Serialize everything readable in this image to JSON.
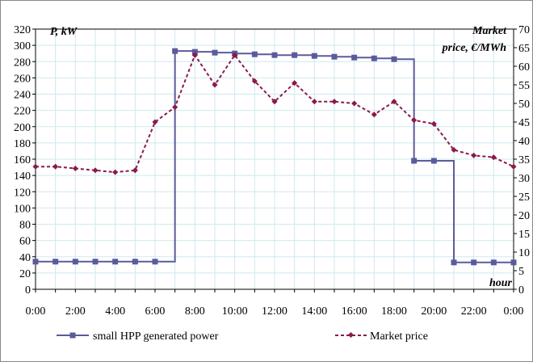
{
  "chart_data": {
    "type": "line",
    "x": [
      "0:00",
      "1:00",
      "2:00",
      "3:00",
      "4:00",
      "5:00",
      "6:00",
      "7:00",
      "8:00",
      "9:00",
      "10:00",
      "11:00",
      "12:00",
      "13:00",
      "14:00",
      "15:00",
      "16:00",
      "17:00",
      "18:00",
      "19:00",
      "20:00",
      "21:00",
      "22:00",
      "23:00",
      "0:00"
    ],
    "x_tick_labels": [
      "0:00",
      "2:00",
      "4:00",
      "6:00",
      "8:00",
      "10:00",
      "12:00",
      "14:00",
      "16:00",
      "18:00",
      "20:00",
      "22:00",
      "0:00"
    ],
    "series": [
      {
        "name": "small HPP generated power",
        "axis": "left",
        "color": "#5b5b9b",
        "style": "solid-step-square",
        "values": [
          34,
          34,
          34,
          34,
          34,
          34,
          34,
          293,
          292,
          291,
          290,
          289,
          288,
          288,
          287,
          286,
          285,
          284,
          283,
          158,
          158,
          33,
          33,
          33,
          33
        ]
      },
      {
        "name": "Market price",
        "axis": "right",
        "color": "#8a1a4a",
        "style": "dashed-diamond",
        "values": [
          33,
          33,
          32.5,
          32,
          31.5,
          32,
          45,
          49,
          63,
          55,
          63,
          56,
          50.5,
          55.5,
          50.5,
          50.5,
          50,
          47,
          50.5,
          45.5,
          44.5,
          37.5,
          36,
          35.5,
          33
        ]
      }
    ],
    "y_left": {
      "label": "P, kW",
      "ylim": [
        0,
        320
      ],
      "ticks": [
        "0",
        "20",
        "40",
        "60",
        "80",
        "100",
        "120",
        "140",
        "160",
        "180",
        "200",
        "220",
        "240",
        "260",
        "280",
        "300",
        "320"
      ]
    },
    "y_right": {
      "label_line1": "Market",
      "label_line2": "price, €/MWh",
      "ylim": [
        0,
        70
      ],
      "ticks": [
        "0",
        "5",
        "10",
        "15",
        "20",
        "25",
        "30",
        "35",
        "40",
        "45",
        "50",
        "55",
        "60",
        "65",
        "70"
      ]
    },
    "xlabel": "hour",
    "grid": true,
    "legend_position": "bottom"
  }
}
